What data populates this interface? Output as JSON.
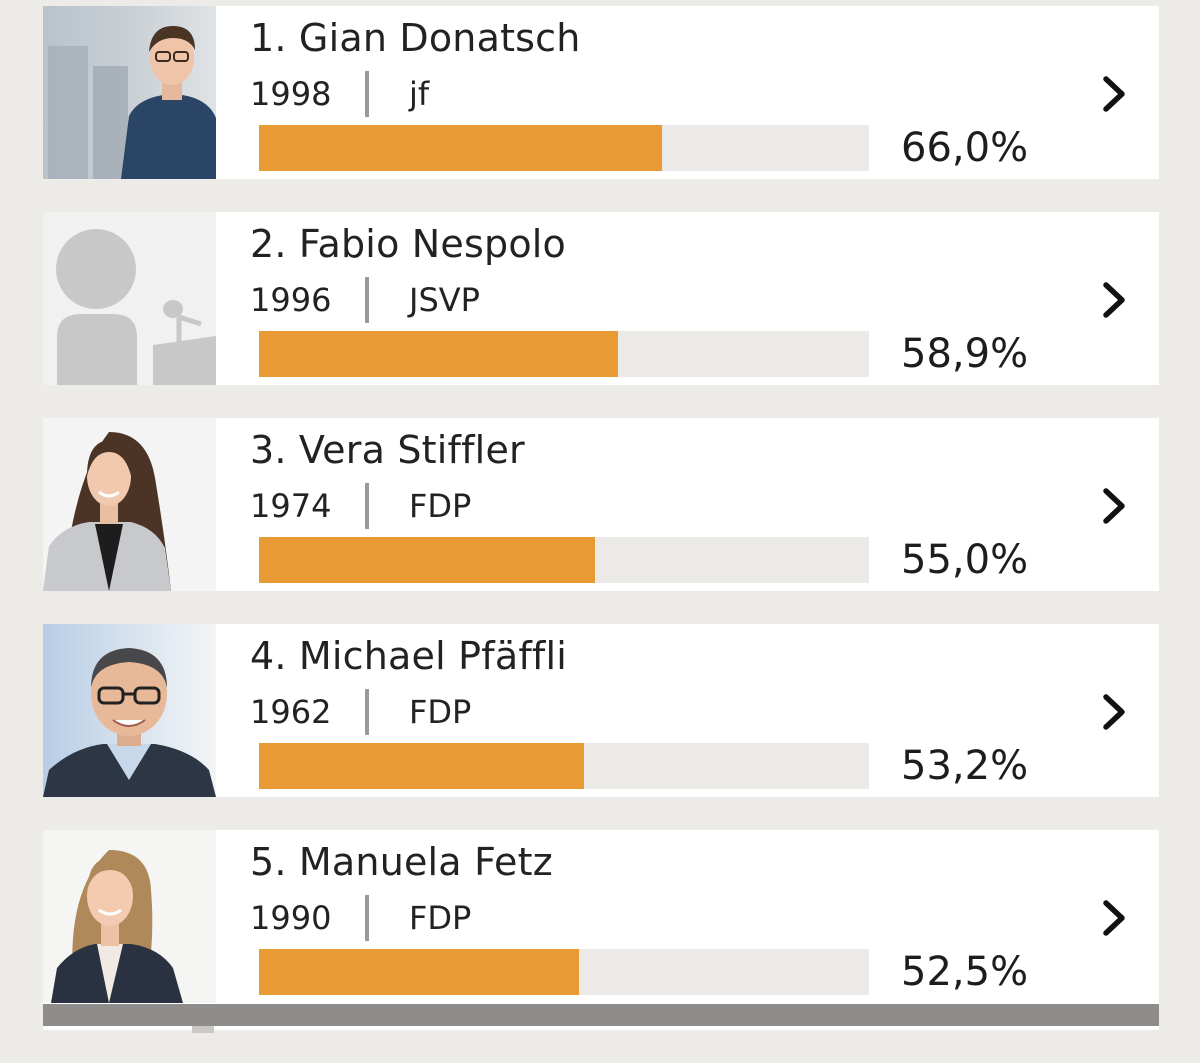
{
  "candidates": [
    {
      "rank_name": "1. Gian Donatsch",
      "year": "1998",
      "party": "jf",
      "percent_label": "66,0%",
      "percent_value": 66.0,
      "photo": "portrait-young-man-blue-shirt"
    },
    {
      "rank_name": "2. Fabio Nespolo",
      "year": "1996",
      "party": "JSVP",
      "percent_label": "58,9%",
      "percent_value": 58.9,
      "photo": "placeholder-speaker-silhouette"
    },
    {
      "rank_name": "3. Vera Stiffler",
      "year": "1974",
      "party": "FDP",
      "percent_label": "55,0%",
      "percent_value": 55.0,
      "photo": "portrait-woman-long-brown-hair"
    },
    {
      "rank_name": "4. Michael Pfäffli",
      "year": "1962",
      "party": "FDP",
      "percent_label": "53,2%",
      "percent_value": 53.2,
      "photo": "portrait-man-glasses"
    },
    {
      "rank_name": "5. Manuela Fetz",
      "year": "1990",
      "party": "FDP",
      "percent_label": "52,5%",
      "percent_value": 52.5,
      "photo": "portrait-woman-blonde"
    }
  ],
  "colors": {
    "bar_fill": "#e89a35",
    "bar_track": "#ebeae7",
    "background": "#ecebe8"
  },
  "bar_scale_max_percent": 100
}
